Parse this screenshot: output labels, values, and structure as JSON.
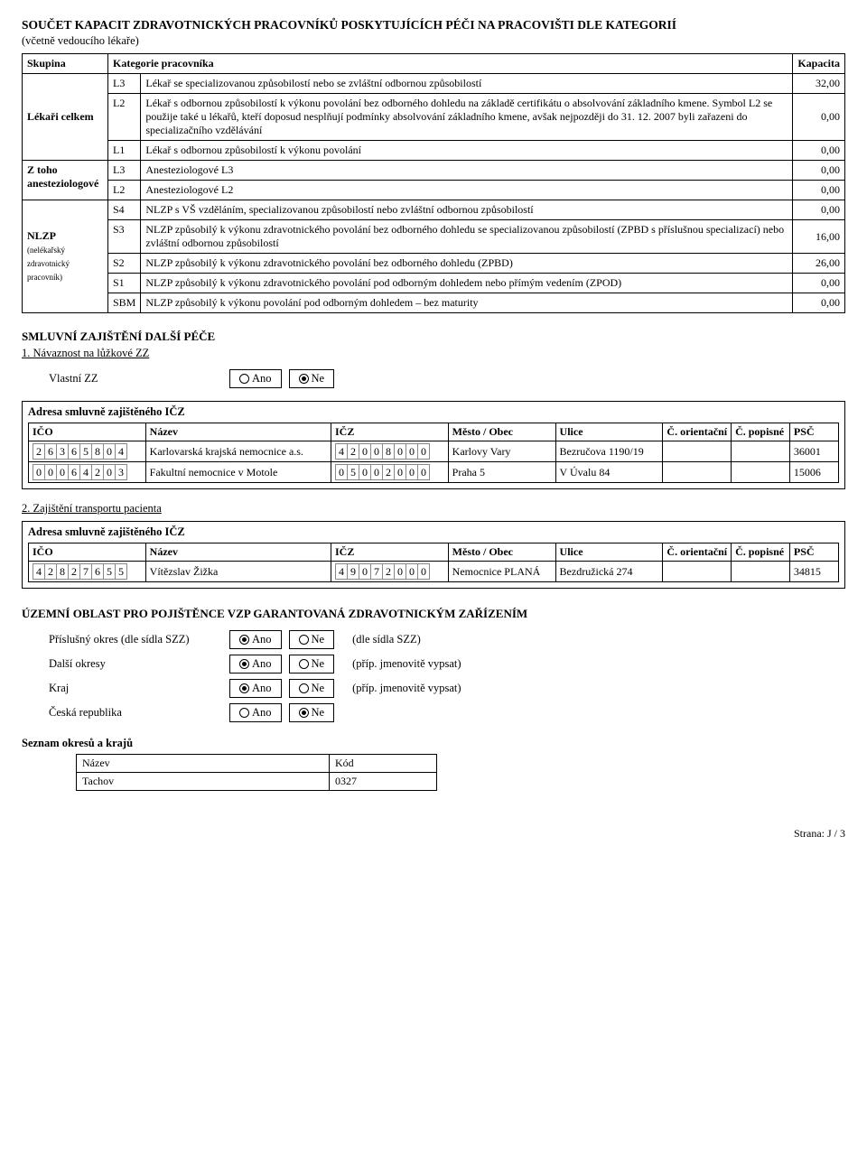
{
  "title": "SOUČET KAPACIT ZDRAVOTNICKÝCH PRACOVNÍKŮ POSKYTUJÍCÍCH PÉČI NA PRACOVIŠTI DLE KATEGORIÍ",
  "subtitle": "(včetně vedoucího lékaře)",
  "cols": {
    "skupina": "Skupina",
    "kategorie": "Kategorie pracovníka",
    "kapacita": "Kapacita"
  },
  "rows": {
    "lekari_group": "Lékaři celkem",
    "l3": {
      "code": "L3",
      "text": "Lékař se specializovanou způsobilostí nebo se zvláštní odbornou způsobilostí",
      "val": "32,00"
    },
    "l2": {
      "code": "L2",
      "text": "Lékař s odbornou způsobilostí k výkonu povolání bez odborného dohledu na základě certifikátu o absolvování základního kmene. Symbol L2 se použije také u lékařů, kteří doposud nesplňují podmínky absolvování základního kmene, avšak nejpozději do 31. 12. 2007 byli zařazeni do specializačního vzdělávání",
      "val": "0,00"
    },
    "l1": {
      "code": "L1",
      "text": "Lékař s odbornou způsobilostí k výkonu povolání",
      "val": "0,00"
    },
    "anest_group1": "Z toho",
    "anest_group2": "anesteziologové",
    "al3": {
      "code": "L3",
      "text": "Anesteziologové L3",
      "val": "0,00"
    },
    "al2": {
      "code": "L2",
      "text": "Anesteziologové L2",
      "val": "0,00"
    },
    "nlzp_group": "NLZP",
    "nlzp_sub": "(nelékařský zdravotnický pracovník)",
    "s4": {
      "code": "S4",
      "text": "NLZP s VŠ vzděláním, specializovanou způsobilostí nebo zvláštní odbornou způsobilostí",
      "val": "0,00"
    },
    "s3": {
      "code": "S3",
      "text": "NLZP způsobilý k výkonu zdravotnického povolání bez odborného dohledu se specializovanou způsobilostí (ZPBD s příslušnou specializací) nebo zvláštní odbornou způsobilostí",
      "val": "16,00"
    },
    "s2": {
      "code": "S2",
      "text": "NLZP způsobilý k výkonu zdravotnického povolání bez odborného dohledu (ZPBD)",
      "val": "26,00"
    },
    "s1": {
      "code": "S1",
      "text": "NLZP způsobilý k výkonu zdravotnického povolání pod odborným dohledem nebo přímým vedením (ZPOD)",
      "val": "0,00"
    },
    "sbm": {
      "code": "SBM",
      "text": "NLZP způsobilý k výkonu povolání pod odborným dohledem – bez maturity",
      "val": "0,00"
    }
  },
  "smluvni": {
    "heading": "SMLUVNÍ ZAJIŠTĚNÍ DALŠÍ PÉČE",
    "sub1": "1. Návaznost na lůžkové ZZ",
    "vlastni": "Vlastní ZZ",
    "ano": "Ano",
    "ne": "Ne"
  },
  "addr_heading": "Adresa smluvně zajištěného IČZ",
  "addr_cols": {
    "ico": "IČO",
    "nazev": "Název",
    "icz": "IČZ",
    "mesto": "Město / Obec",
    "ulice": "Ulice",
    "co": "Č. orientační",
    "cp": "Č. popisné",
    "psc": "PSČ"
  },
  "addr1": [
    {
      "ico": "26365804",
      "nazev": "Karlovarská krajská nemocnice a.s.",
      "icz": "42008000",
      "mesto": "Karlovy Vary",
      "ulice": "Bezručova 1190/19",
      "co": "",
      "cp": "",
      "psc": "36001"
    },
    {
      "ico": "00064203",
      "nazev": "Fakultní nemocnice v Motole",
      "icz": "05002000",
      "mesto": "Praha 5",
      "ulice": "V Úvalu 84",
      "co": "",
      "cp": "",
      "psc": "15006"
    }
  ],
  "transport": "2. Zajištění transportu pacienta",
  "addr2": [
    {
      "ico": "42827655",
      "nazev": "Vítězslav Žižka",
      "icz": "49072000",
      "mesto": "Nemocnice PLANÁ",
      "ulice": "Bezdružická 274",
      "co": "",
      "cp": "",
      "psc": "34815"
    }
  ],
  "uzemni": {
    "heading": "ÚZEMNÍ OBLAST PRO POJIŠTĚNCE VZP GARANTOVANÁ ZDRAVOTNICKÝM ZAŘÍZENÍM",
    "okres": "Příslušný okres (dle sídla SZZ)",
    "okres_note": "(dle sídla SZZ)",
    "dalsi": "Další okresy",
    "dalsi_note": "(příp. jmenovitě vypsat)",
    "kraj": "Kraj",
    "kraj_note": "(příp. jmenovitě vypsat)",
    "cr": "Česká republika"
  },
  "seznam": {
    "heading": "Seznam okresů a krajů",
    "nazev_col": "Název",
    "kod_col": "Kód",
    "row_nazev": "Tachov",
    "row_kod": "0327"
  },
  "footer": "Strana:  J  /  3"
}
